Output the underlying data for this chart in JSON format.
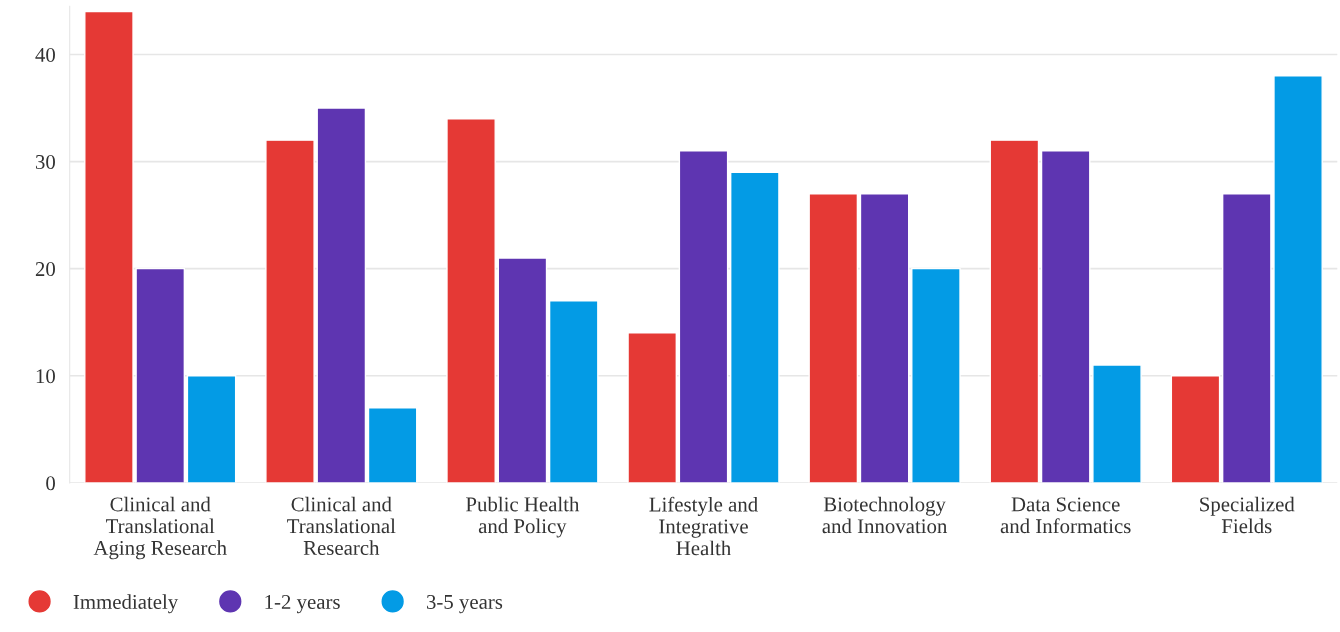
{
  "chart_data": {
    "type": "bar",
    "categories": [
      "Clinical and\nTranslational\nAging Research",
      "Clinical and\nTranslational\nResearch",
      "Public Health\nand Policy",
      "Lifestyle and\nIntegrative\nHealth",
      "Biotechnology\nand Innovation",
      "Data Science\nand Informatics",
      "Specialized\nFields"
    ],
    "series": [
      {
        "name": "Immediately",
        "color": "#e53935",
        "values": [
          44,
          32,
          34,
          14,
          27,
          32,
          10
        ]
      },
      {
        "name": "1-2 years",
        "color": "#5e35b1",
        "values": [
          20,
          35,
          21,
          31,
          27,
          31,
          27
        ]
      },
      {
        "name": "3-5 years",
        "color": "#039be5",
        "values": [
          10,
          7,
          17,
          29,
          20,
          11,
          38
        ]
      }
    ],
    "ylim": [
      0,
      44.5
    ],
    "yticks": [
      0,
      10,
      20,
      30,
      40
    ],
    "grid": "y",
    "legend": "bottom left",
    "marker": "circle"
  }
}
